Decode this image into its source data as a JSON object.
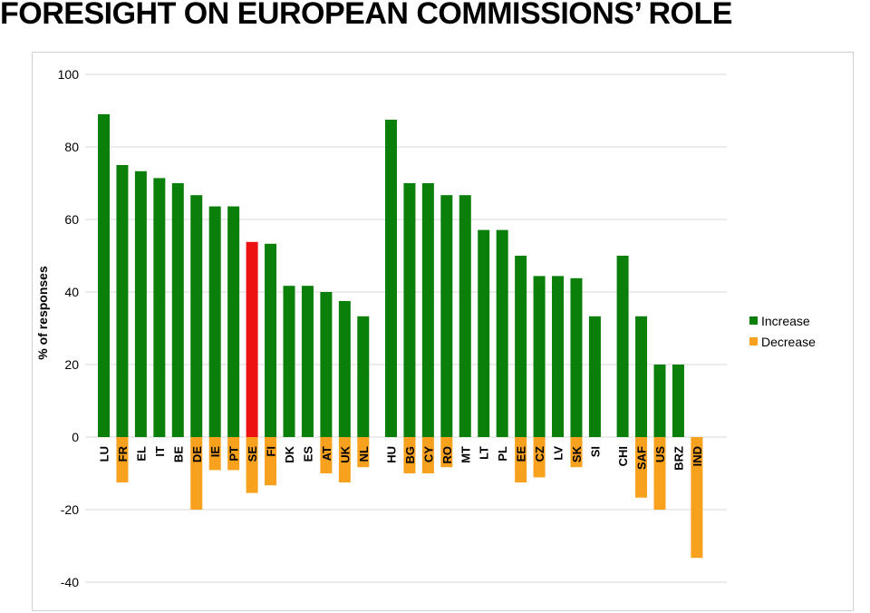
{
  "title": "FORESIGHT ON EUROPEAN COMMISSIONS’ ROLE",
  "chart_data": {
    "type": "bar",
    "ylabel": "% of responses",
    "xlabel": "",
    "ylim": [
      -40,
      100
    ],
    "yticks": [
      100,
      80,
      60,
      40,
      20,
      0,
      -20,
      -40
    ],
    "grid": true,
    "legend_position": "right",
    "groups": [
      [
        "LU",
        "FR",
        "EL",
        "IT",
        "BE",
        "DE",
        "IE",
        "PT",
        "SE",
        "FI",
        "DK",
        "ES",
        "AT",
        "UK",
        "NL"
      ],
      [
        "HU",
        "BG",
        "CY",
        "RO",
        "MT",
        "LT",
        "PL",
        "EE",
        "CZ",
        "LV",
        "SK",
        "SI"
      ],
      [
        "CHI",
        "SAF",
        "US",
        "BRZ",
        "IND"
      ]
    ],
    "categories": [
      "LU",
      "FR",
      "EL",
      "IT",
      "BE",
      "DE",
      "IE",
      "PT",
      "SE",
      "FI",
      "DK",
      "ES",
      "AT",
      "UK",
      "NL",
      "HU",
      "BG",
      "CY",
      "RO",
      "MT",
      "LT",
      "PL",
      "EE",
      "CZ",
      "LV",
      "SK",
      "SI",
      "CHI",
      "SAF",
      "US",
      "BRZ",
      "IND"
    ],
    "series": [
      {
        "name": "Increase",
        "color": "#0a7f0a",
        "values": [
          89,
          75,
          73.3,
          71.4,
          70,
          66.7,
          63.6,
          63.6,
          53.8,
          53.3,
          41.7,
          41.7,
          40,
          37.5,
          33.3,
          87.5,
          70,
          70,
          66.7,
          66.7,
          57.1,
          57.1,
          50,
          44.4,
          44.4,
          43.8,
          33.3,
          50,
          33.3,
          20,
          20,
          0
        ]
      },
      {
        "name": "Decrease",
        "color": "#f8a11e",
        "values": [
          0,
          -12.5,
          0,
          0,
          0,
          -20,
          -9.1,
          -9.1,
          -15.4,
          -13.3,
          0,
          0,
          -10,
          -12.5,
          -8.3,
          0,
          -10,
          -10,
          -8.3,
          0,
          0,
          0,
          -12.5,
          -11.1,
          0,
          -8.3,
          0,
          0,
          -16.7,
          -20,
          0,
          -33.3
        ]
      }
    ],
    "highlight": {
      "category": "SE",
      "color": "#ee1111"
    }
  }
}
